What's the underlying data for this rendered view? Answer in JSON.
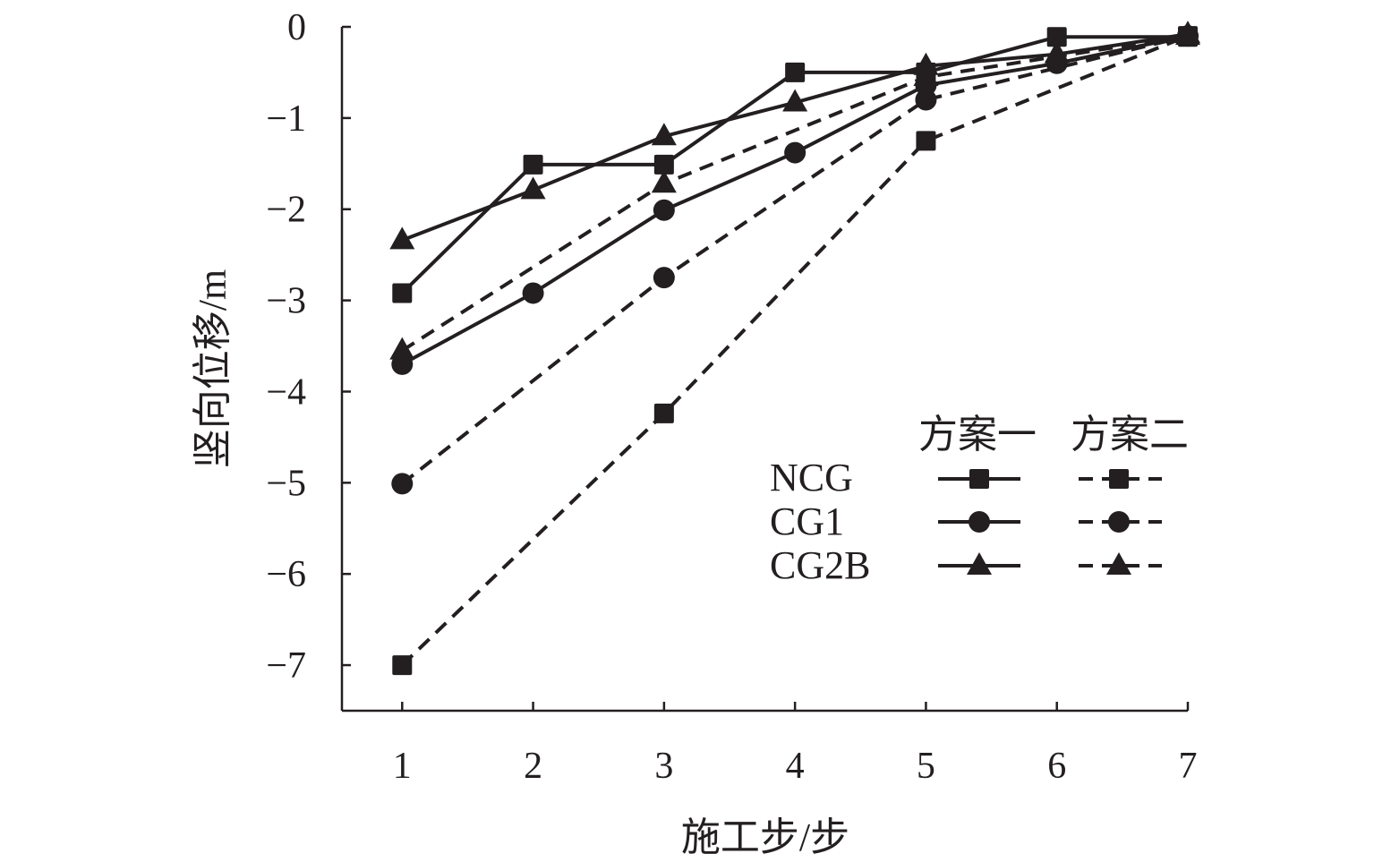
{
  "chart_data": {
    "type": "line",
    "title": "",
    "xlabel": "施工步/步",
    "ylabel": "竖向位移/m",
    "xlim": [
      0.54,
      7
    ],
    "ylim": [
      -7.5,
      0
    ],
    "xticks": [
      1,
      2,
      3,
      4,
      5,
      6,
      7
    ],
    "yticks": [
      0,
      -1,
      -2,
      -3,
      -4,
      -5,
      -6,
      -7
    ],
    "ytick_labels": [
      "0",
      "−1",
      "−2",
      "−3",
      "−4",
      "−5",
      "−6",
      "−7"
    ],
    "grid": false,
    "legend": {
      "placement": "bottom-right",
      "column_headers": [
        "方案一",
        "方案二"
      ],
      "row_labels": [
        "NCG",
        "CG1",
        "CG2B"
      ]
    },
    "color": "#231f20",
    "series": [
      {
        "name": "NCG 方案一",
        "marker": "square",
        "dash": false,
        "x": [
          1,
          2,
          3,
          4,
          5,
          6,
          7
        ],
        "values": [
          -2.92,
          -1.51,
          -1.51,
          -0.5,
          -0.5,
          -0.11,
          -0.11
        ]
      },
      {
        "name": "CG1 方案一",
        "marker": "circle",
        "dash": false,
        "x": [
          1,
          2,
          3,
          4,
          5,
          6,
          7
        ],
        "values": [
          -3.7,
          -2.92,
          -2.01,
          -1.38,
          -0.64,
          -0.4,
          -0.1
        ]
      },
      {
        "name": "CG2B 方案一",
        "marker": "triangle",
        "dash": false,
        "x": [
          1,
          2,
          3,
          4,
          5,
          6,
          7
        ],
        "values": [
          -2.34,
          -1.79,
          -1.2,
          -0.83,
          -0.43,
          -0.3,
          -0.08
        ]
      },
      {
        "name": "NCG 方案二",
        "marker": "square",
        "dash": true,
        "x": [
          1,
          3,
          5,
          7
        ],
        "values": [
          -7.0,
          -4.24,
          -1.25,
          -0.1
        ]
      },
      {
        "name": "CG1 方案二",
        "marker": "circle",
        "dash": true,
        "x": [
          1,
          3,
          5,
          7
        ],
        "values": [
          -5.01,
          -2.75,
          -0.8,
          -0.1
        ]
      },
      {
        "name": "CG2B 方案二",
        "marker": "triangle",
        "dash": true,
        "x": [
          1,
          3,
          5,
          7
        ],
        "values": [
          -3.55,
          -1.72,
          -0.55,
          -0.1
        ]
      }
    ]
  }
}
